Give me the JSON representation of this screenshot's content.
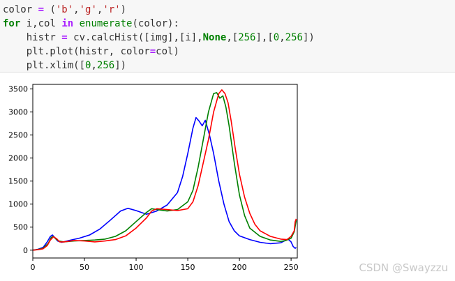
{
  "code_cell": {
    "lines": [
      [
        {
          "t": "color ",
          "k": "plain"
        },
        {
          "t": "=",
          "k": "op"
        },
        {
          "t": " (",
          "k": "plain"
        },
        {
          "t": "'b'",
          "k": "str"
        },
        {
          "t": ",",
          "k": "plain"
        },
        {
          "t": "'g'",
          "k": "str"
        },
        {
          "t": ",",
          "k": "plain"
        },
        {
          "t": "'r'",
          "k": "str"
        },
        {
          "t": ")",
          "k": "plain"
        }
      ],
      [
        {
          "t": "for",
          "k": "kw"
        },
        {
          "t": " i,col ",
          "k": "plain"
        },
        {
          "t": "in",
          "k": "op"
        },
        {
          "t": " ",
          "k": "plain"
        },
        {
          "t": "enumerate",
          "k": "num"
        },
        {
          "t": "(color):",
          "k": "plain"
        }
      ],
      [
        {
          "t": "    histr ",
          "k": "plain"
        },
        {
          "t": "=",
          "k": "op"
        },
        {
          "t": " cv.calcHist([img],[i],",
          "k": "plain"
        },
        {
          "t": "None",
          "k": "kw"
        },
        {
          "t": ",[",
          "k": "plain"
        },
        {
          "t": "256",
          "k": "num"
        },
        {
          "t": "],[",
          "k": "plain"
        },
        {
          "t": "0",
          "k": "num"
        },
        {
          "t": ",",
          "k": "plain"
        },
        {
          "t": "256",
          "k": "num"
        },
        {
          "t": "])",
          "k": "plain"
        }
      ],
      [
        {
          "t": "    plt.plot(histr, color",
          "k": "plain"
        },
        {
          "t": "=",
          "k": "op"
        },
        {
          "t": "col)",
          "k": "plain"
        }
      ],
      [
        {
          "t": "    plt.xlim([",
          "k": "plain"
        },
        {
          "t": "0",
          "k": "num"
        },
        {
          "t": ",",
          "k": "plain"
        },
        {
          "t": "256",
          "k": "num"
        },
        {
          "t": "])",
          "k": "plain"
        }
      ]
    ]
  },
  "chart_data": {
    "type": "line",
    "title": "",
    "xlabel": "",
    "ylabel": "",
    "xlim": [
      0,
      256
    ],
    "ylim": [
      -170,
      3600
    ],
    "xticks": [
      0,
      50,
      100,
      150,
      200,
      250
    ],
    "yticks": [
      0,
      500,
      1000,
      1500,
      2000,
      2500,
      3000,
      3500
    ],
    "grid": false,
    "series": [
      {
        "color": "#0000ff",
        "x": [
          0,
          5,
          10,
          14,
          17,
          19,
          21,
          24,
          28,
          35,
          45,
          55,
          65,
          75,
          85,
          92,
          100,
          110,
          120,
          130,
          140,
          145,
          150,
          155,
          158,
          161,
          164,
          167,
          171,
          175,
          180,
          185,
          190,
          195,
          200,
          210,
          220,
          230,
          240,
          247,
          250,
          252,
          254,
          255
        ],
        "y": [
          0,
          20,
          60,
          180,
          300,
          330,
          280,
          200,
          170,
          210,
          260,
          330,
          460,
          650,
          850,
          910,
          860,
          780,
          850,
          980,
          1250,
          1600,
          2100,
          2650,
          2880,
          2800,
          2700,
          2820,
          2500,
          2100,
          1500,
          1000,
          620,
          420,
          310,
          230,
          170,
          140,
          160,
          240,
          180,
          80,
          40,
          60
        ]
      },
      {
        "color": "#008000",
        "x": [
          0,
          5,
          10,
          15,
          18,
          20,
          22,
          25,
          30,
          40,
          50,
          60,
          70,
          80,
          90,
          100,
          110,
          115,
          120,
          130,
          140,
          150,
          155,
          160,
          165,
          170,
          175,
          178,
          181,
          184,
          187,
          190,
          195,
          200,
          205,
          210,
          220,
          230,
          240,
          245,
          250,
          253,
          255
        ],
        "y": [
          0,
          15,
          40,
          150,
          280,
          300,
          250,
          200,
          180,
          200,
          210,
          220,
          240,
          300,
          420,
          620,
          820,
          900,
          880,
          850,
          880,
          1050,
          1300,
          1800,
          2400,
          3000,
          3400,
          3420,
          3300,
          3350,
          3100,
          2700,
          1900,
          1200,
          750,
          480,
          300,
          220,
          190,
          210,
          260,
          400,
          650
        ]
      },
      {
        "color": "#ff0000",
        "x": [
          0,
          5,
          10,
          14,
          17,
          20,
          23,
          26,
          30,
          40,
          50,
          60,
          70,
          80,
          90,
          100,
          110,
          115,
          120,
          130,
          140,
          150,
          155,
          160,
          165,
          170,
          175,
          180,
          183,
          186,
          189,
          192,
          196,
          200,
          205,
          210,
          215,
          220,
          230,
          240,
          246,
          250,
          253,
          254,
          255
        ],
        "y": [
          0,
          10,
          30,
          100,
          220,
          290,
          250,
          180,
          180,
          210,
          200,
          180,
          200,
          230,
          310,
          480,
          700,
          850,
          900,
          880,
          860,
          900,
          1050,
          1400,
          1900,
          2400,
          3000,
          3400,
          3480,
          3400,
          3200,
          2800,
          2200,
          1650,
          1150,
          800,
          560,
          420,
          300,
          240,
          230,
          300,
          420,
          620,
          680
        ]
      }
    ]
  },
  "watermark": "CSDN @Swayzzu"
}
